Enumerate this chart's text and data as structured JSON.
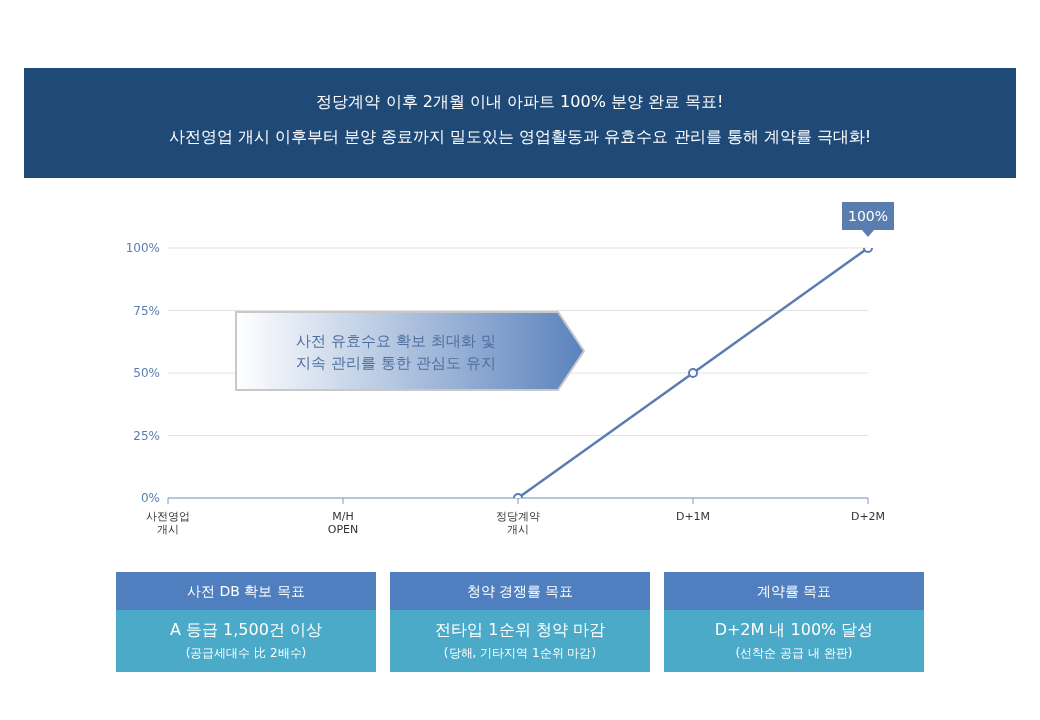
{
  "chart_data": {
    "type": "line",
    "title": "정당계약 이후 2개월 이내 아파트 100% 분양 완료 목표!",
    "subtitle": "사전영업 개시 이후부터 분양 종료까지 밀도있는 영업활동과 유효수요 관리를 통해 계약률 극대화!",
    "categories": [
      "사전영업\n개시",
      "M/H\nOPEN",
      "정당계약\n개시",
      "D+1M",
      "D+2M"
    ],
    "series": [
      {
        "color": "#5a7db0",
        "values": [
          null,
          null,
          0,
          50,
          100
        ],
        "value_labels": [
          null,
          null,
          null,
          null,
          "100%"
        ]
      }
    ],
    "ylim": [
      0,
      100
    ],
    "yticks": [
      {
        "value": 0,
        "label": "0%"
      },
      {
        "value": 25,
        "label": "25%"
      },
      {
        "value": 50,
        "label": "50%"
      },
      {
        "value": 75,
        "label": "75%"
      },
      {
        "value": 100,
        "label": "100%"
      }
    ],
    "grid": "y",
    "legend": false,
    "marker": "circle",
    "line_style": "solid",
    "annotations": [
      "사전 유효수요 확보 최대화 및\n지속 관리를 통한 관심도 유지",
      "사전 DB 확보 목표",
      "A 등급 1,500건 이상",
      "(공급세대수 比 2배수)",
      "청약 경쟁률 목표",
      "전타입 1순위 청약 마감",
      "(당해, 기타지역 1순위 마감)",
      "계약률 목표",
      "D+2M 내 100% 달성",
      "(선착순 공급 내 완판)"
    ]
  }
}
